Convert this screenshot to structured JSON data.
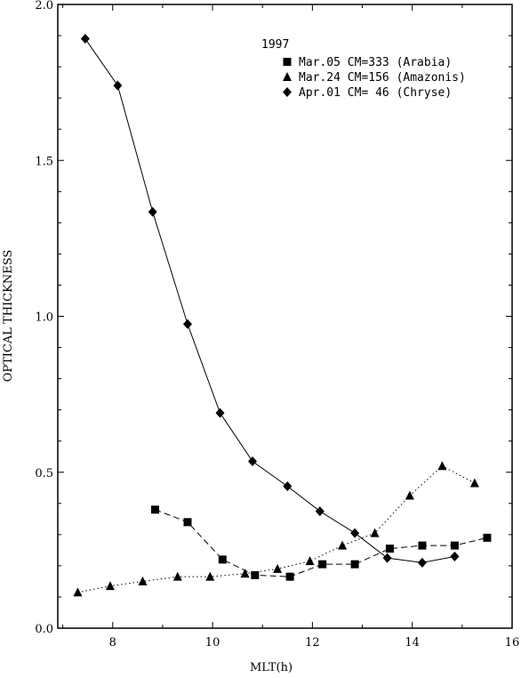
{
  "chart_data": {
    "type": "line",
    "xlabel": "MLT(h)",
    "ylabel": "OPTICAL THICKNESS",
    "xlim": [
      6.9,
      16
    ],
    "ylim": [
      0,
      2.0
    ],
    "xticks": [
      8,
      10,
      12,
      14,
      16
    ],
    "yticks": [
      0.0,
      0.5,
      1.0,
      1.5,
      2.0
    ],
    "xtick_labels": [
      "8",
      "10",
      "12",
      "14",
      "16"
    ],
    "ytick_labels": [
      "0.0",
      "0.5",
      "1.0",
      "1.5",
      "2.0"
    ],
    "grid": false,
    "legend_title": "1997",
    "legend_position": "top-right",
    "series": [
      {
        "name": "Mar.05 CM=333 (Arabia)",
        "marker": "square",
        "line": "dashed",
        "x": [
          8.85,
          9.5,
          10.2,
          10.85,
          11.55,
          12.2,
          12.85,
          13.55,
          14.2,
          14.85,
          15.5
        ],
        "y": [
          0.38,
          0.34,
          0.22,
          0.17,
          0.165,
          0.205,
          0.205,
          0.255,
          0.265,
          0.265,
          0.29
        ]
      },
      {
        "name": "Mar.24 CM=156 (Amazonis)",
        "marker": "triangle",
        "line": "dotted",
        "x": [
          7.3,
          7.95,
          8.6,
          9.3,
          9.95,
          10.65,
          11.3,
          11.95,
          12.6,
          13.25,
          13.95,
          14.6,
          15.25
        ],
        "y": [
          0.115,
          0.135,
          0.15,
          0.165,
          0.165,
          0.175,
          0.19,
          0.215,
          0.265,
          0.305,
          0.425,
          0.52,
          0.465
        ]
      },
      {
        "name": "Apr.01 CM= 46 (Chryse)",
        "marker": "diamond",
        "line": "solid",
        "x": [
          7.45,
          8.1,
          8.8,
          9.5,
          10.15,
          10.8,
          11.5,
          12.15,
          12.85,
          13.5,
          14.2,
          14.85
        ],
        "y": [
          1.89,
          1.74,
          1.335,
          0.975,
          0.69,
          0.535,
          0.455,
          0.375,
          0.305,
          0.225,
          0.21,
          0.23
        ]
      }
    ]
  }
}
